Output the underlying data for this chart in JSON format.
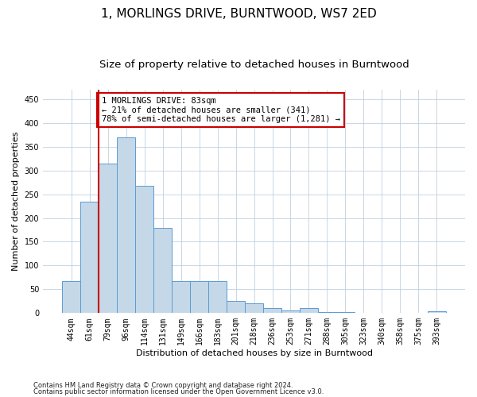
{
  "title": "1, MORLINGS DRIVE, BURNTWOOD, WS7 2ED",
  "subtitle": "Size of property relative to detached houses in Burntwood",
  "xlabel": "Distribution of detached houses by size in Burntwood",
  "ylabel": "Number of detached properties",
  "categories": [
    "44sqm",
    "61sqm",
    "79sqm",
    "96sqm",
    "114sqm",
    "131sqm",
    "149sqm",
    "166sqm",
    "183sqm",
    "201sqm",
    "218sqm",
    "236sqm",
    "253sqm",
    "271sqm",
    "288sqm",
    "305sqm",
    "323sqm",
    "340sqm",
    "358sqm",
    "375sqm",
    "393sqm"
  ],
  "values": [
    68,
    235,
    315,
    370,
    267,
    180,
    67,
    68,
    68,
    25,
    20,
    10,
    6,
    10,
    3,
    2,
    1,
    0,
    0,
    0,
    4
  ],
  "bar_color": "#c5d8e8",
  "bar_edge_color": "#5b9bd5",
  "property_line_index": 2,
  "property_line_color": "#cc0000",
  "annotation_text": "1 MORLINGS DRIVE: 83sqm\n← 21% of detached houses are smaller (341)\n78% of semi-detached houses are larger (1,281) →",
  "annotation_box_color": "#ffffff",
  "annotation_box_edge_color": "#cc0000",
  "footnote1": "Contains HM Land Registry data © Crown copyright and database right 2024.",
  "footnote2": "Contains public sector information licensed under the Open Government Licence v3.0.",
  "ylim": [
    0,
    470
  ],
  "yticks": [
    0,
    50,
    100,
    150,
    200,
    250,
    300,
    350,
    400,
    450
  ],
  "bg_color": "#ffffff",
  "grid_color": "#c0d0e0",
  "title_fontsize": 11,
  "subtitle_fontsize": 9.5,
  "axis_label_fontsize": 8,
  "tick_fontsize": 7,
  "annotation_fontsize": 7.5,
  "footnote_fontsize": 6
}
